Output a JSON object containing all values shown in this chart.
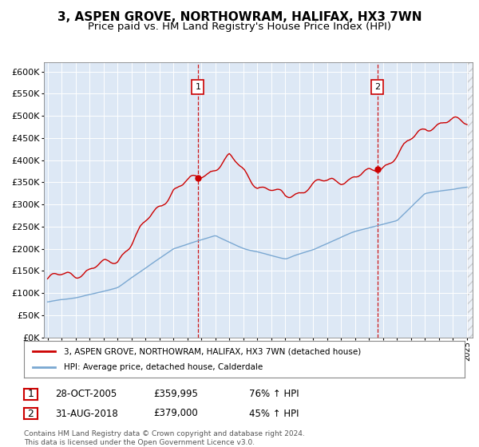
{
  "title": "3, ASPEN GROVE, NORTHOWRAM, HALIFAX, HX3 7WN",
  "subtitle": "Price paid vs. HM Land Registry's House Price Index (HPI)",
  "title_fontsize": 11,
  "subtitle_fontsize": 9.5,
  "background_color": "#ffffff",
  "plot_bg_color": "#dde8f5",
  "red_line_color": "#cc0000",
  "blue_line_color": "#7aa8d2",
  "sale1_price": 359995,
  "sale2_price": 379000,
  "legend_line1": "3, ASPEN GROVE, NORTHOWRAM, HALIFAX, HX3 7WN (detached house)",
  "legend_line2": "HPI: Average price, detached house, Calderdale",
  "footer": "Contains HM Land Registry data © Crown copyright and database right 2024.\nThis data is licensed under the Open Government Licence v3.0.",
  "yticks": [
    0,
    50000,
    100000,
    150000,
    200000,
    250000,
    300000,
    350000,
    400000,
    450000,
    500000,
    550000,
    600000
  ],
  "ylim": [
    0,
    620000
  ],
  "ann1_date": "28-OCT-2005",
  "ann1_price": "£359,995",
  "ann1_pct": "76% ↑ HPI",
  "ann2_date": "31-AUG-2018",
  "ann2_price": "£379,000",
  "ann2_pct": "45% ↑ HPI"
}
